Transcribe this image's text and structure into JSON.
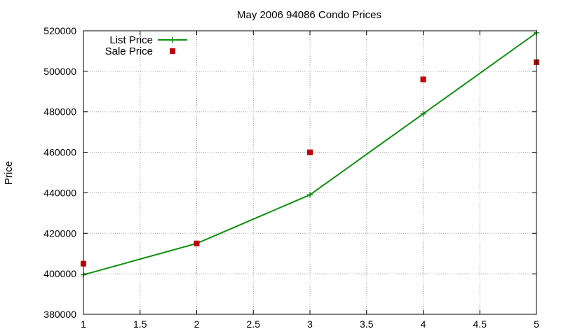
{
  "chart_data": {
    "type": "line",
    "title": "May 2006 94086 Condo Prices",
    "xlabel": "",
    "ylabel": "Price",
    "xlim": [
      1,
      5
    ],
    "ylim": [
      380000,
      520000
    ],
    "x_ticks": [
      "1",
      "1.5",
      "2",
      "2.5",
      "3",
      "3.5",
      "4",
      "4.5",
      "5"
    ],
    "x_tick_values": [
      1,
      1.5,
      2,
      2.5,
      3,
      3.5,
      4,
      4.5,
      5
    ],
    "y_ticks": [
      "380000",
      "400000",
      "420000",
      "440000",
      "460000",
      "480000",
      "500000",
      "520000"
    ],
    "y_tick_values": [
      380000,
      400000,
      420000,
      440000,
      460000,
      480000,
      500000,
      520000
    ],
    "grid": true,
    "legend_position": "top-left",
    "series": [
      {
        "name": "List Price",
        "style": "lines+points",
        "marker": "plus",
        "color": "#109010",
        "x": [
          1,
          2,
          3,
          4,
          5
        ],
        "y": [
          399500,
          415000,
          439000,
          479000,
          519000
        ]
      },
      {
        "name": "Sale Price",
        "style": "points",
        "marker": "square",
        "color": "#c00000",
        "x": [
          1,
          2,
          3,
          4,
          5
        ],
        "y": [
          405000,
          415000,
          460000,
          496000,
          504500
        ]
      }
    ]
  }
}
